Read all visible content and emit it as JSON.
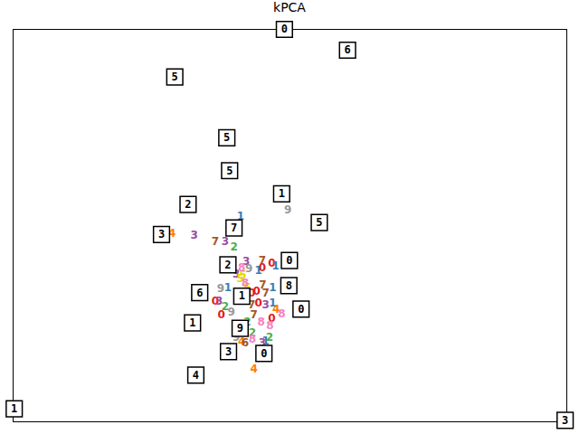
{
  "chart_data": {
    "type": "scatter",
    "title": "kPCA",
    "xlim": [
      0,
      1
    ],
    "ylim": [
      0,
      1
    ],
    "tick_labels": false,
    "grid": false,
    "marker": "text",
    "series": [
      {
        "name": "0",
        "color": "#e41a1c",
        "x": [
          0.45,
          0.467,
          0.44,
          0.365,
          0.376,
          0.443,
          0.467,
          0.431
        ],
        "y": [
          0.393,
          0.404,
          0.333,
          0.307,
          0.272,
          0.302,
          0.263,
          0.329
        ]
      },
      {
        "name": "1",
        "color": "#377eb8",
        "x": [
          0.411,
          0.474,
          0.388,
          0.469,
          0.469,
          0.456,
          0.443
        ],
        "y": [
          0.523,
          0.397,
          0.342,
          0.342,
          0.302,
          0.205,
          0.386
        ]
      },
      {
        "name": "2",
        "color": "#4daf4a",
        "x": [
          0.399,
          0.383,
          0.463,
          0.432,
          0.423
        ],
        "y": [
          0.446,
          0.294,
          0.216,
          0.227,
          0.254
        ]
      },
      {
        "name": "3",
        "color": "#984ea3",
        "x": [
          0.327,
          0.383,
          0.421,
          0.403,
          0.372,
          0.456,
          0.45
        ],
        "y": [
          0.475,
          0.459,
          0.408,
          0.377,
          0.307,
          0.298,
          0.201
        ]
      },
      {
        "name": "4",
        "color": "#ff7f00",
        "x": [
          0.287,
          0.475,
          0.435,
          0.418,
          0.413
        ],
        "y": [
          0.481,
          0.287,
          0.135,
          0.309,
          0.203
        ]
      },
      {
        "name": "5",
        "color": "#e6d800",
        "x": [
          0.41,
          0.415,
          0.423
        ],
        "y": [
          0.364,
          0.375,
          0.342
        ]
      },
      {
        "name": "6",
        "color": "#a65628",
        "x": [
          0.419
        ],
        "y": [
          0.201
        ]
      },
      {
        "name": "7",
        "color": "#a65628",
        "x": [
          0.365,
          0.45,
          0.451,
          0.431,
          0.456,
          0.435
        ],
        "y": [
          0.459,
          0.411,
          0.349,
          0.298,
          0.327,
          0.272
        ]
      },
      {
        "name": "8",
        "color": "#f781bf",
        "x": [
          0.413,
          0.419,
          0.485,
          0.464,
          0.448,
          0.432
        ],
        "y": [
          0.393,
          0.353,
          0.274,
          0.245,
          0.254,
          0.21
        ]
      },
      {
        "name": "9",
        "color": "#999999",
        "x": [
          0.496,
          0.375,
          0.394,
          0.426,
          0.403
        ],
        "y": [
          0.539,
          0.34,
          0.28,
          0.391,
          0.214
        ]
      }
    ],
    "thumbnails": {
      "labels": [
        "0",
        "6",
        "5",
        "5",
        "5",
        "1",
        "2",
        "3",
        "7",
        "5",
        "0",
        "2",
        "8",
        "6",
        "1",
        "0",
        "1",
        "9",
        "3",
        "0",
        "4",
        "1",
        "3"
      ],
      "x": [
        0.49,
        0.604,
        0.292,
        0.386,
        0.391,
        0.485,
        0.316,
        0.268,
        0.399,
        0.553,
        0.499,
        0.388,
        0.498,
        0.337,
        0.413,
        0.52,
        0.324,
        0.41,
        0.389,
        0.453,
        0.33,
        0.002,
        0.997
      ],
      "y": [
        1.0,
        0.947,
        0.879,
        0.724,
        0.64,
        0.581,
        0.554,
        0.477,
        0.494,
        0.508,
        0.411,
        0.4,
        0.347,
        0.329,
        0.32,
        0.287,
        0.252,
        0.238,
        0.179,
        0.174,
        0.119,
        0.033,
        0.004
      ]
    }
  }
}
